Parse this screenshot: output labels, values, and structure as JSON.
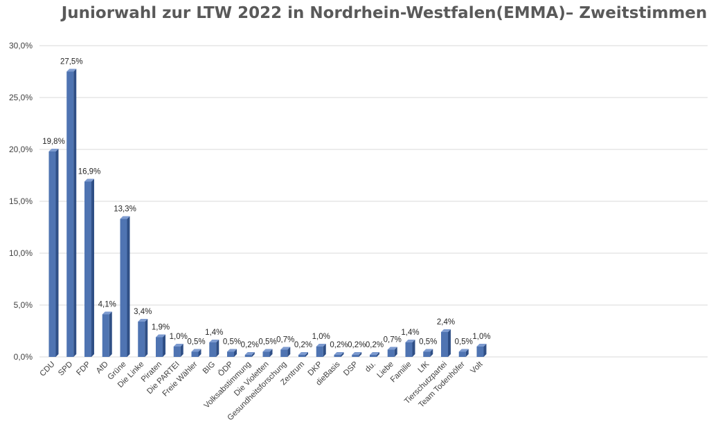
{
  "chart_data": {
    "type": "bar",
    "title": "Juniorwahl zur LTW 2022 in Nordrhein-Westfalen(EMMA)– Zweitstimmen",
    "xlabel": "",
    "ylabel": "",
    "ylim": [
      0,
      30
    ],
    "ytick_labels": [
      "0,0%",
      "5,0%",
      "10,0%",
      "15,0%",
      "20,0%",
      "25,0%",
      "30,0%"
    ],
    "grid": true,
    "legend": "none",
    "bar_color": "#4F74B2",
    "categories": [
      "CDU",
      "SPD",
      "FDP",
      "AfD",
      "Grüne",
      "Die Linke",
      "Piraten",
      "Die PARTEI",
      "Freie Wähler",
      "BIG",
      "ÖDP",
      "Volksabstimmung",
      "Die Violetten",
      "Gesundheitsforschung",
      "Zentrum",
      "DKP",
      "dieBasis",
      "DSP",
      "du.",
      "Liebe",
      "Familie",
      "LfK",
      "Tierschutzpartei",
      "Team Todenhöfer",
      "Volt"
    ],
    "values": [
      19.8,
      27.5,
      16.9,
      4.1,
      13.3,
      3.4,
      1.9,
      1.0,
      0.5,
      1.4,
      0.5,
      0.2,
      0.5,
      0.7,
      0.2,
      1.0,
      0.2,
      0.2,
      0.2,
      0.7,
      1.4,
      0.5,
      2.4,
      0.5,
      1.0
    ],
    "data_labels": [
      "19,8%",
      "27,5%",
      "16,9%",
      "4,1%",
      "13,3%",
      "3,4%",
      "1,9%",
      "1,0%",
      "0,5%",
      "1,4%",
      "0,5%",
      "0,2%",
      "0,5%",
      "0,7%",
      "0,2%",
      "1,0%",
      "0,2%",
      "0,2%",
      "0,2%",
      "0,7%",
      "1,4%",
      "0,5%",
      "2,4%",
      "0,5%",
      "1,0%"
    ]
  }
}
